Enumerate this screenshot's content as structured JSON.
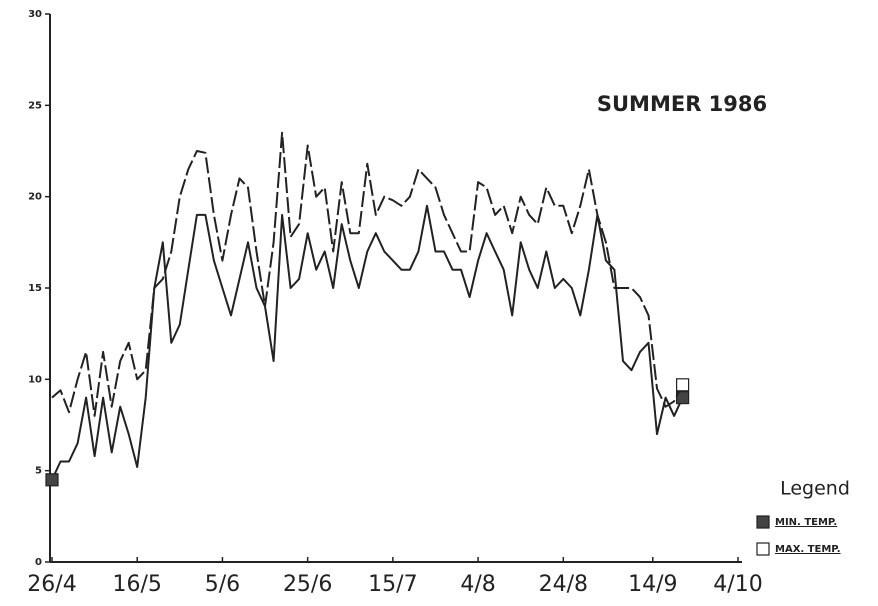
{
  "chart_data": {
    "type": "line",
    "title": "SUMMER 1986",
    "x": [
      0,
      2,
      4,
      6,
      8,
      10,
      12,
      14,
      16,
      18,
      20,
      22,
      24,
      26,
      28,
      30,
      32,
      34,
      36,
      38,
      40,
      42,
      44,
      46,
      48,
      50,
      52,
      54,
      56,
      58,
      60,
      62,
      64,
      66,
      68,
      70,
      72,
      74,
      76,
      78,
      80,
      82,
      84,
      86,
      88,
      90,
      92,
      94,
      96,
      98,
      100,
      102,
      104,
      106,
      108,
      110,
      112,
      114,
      116,
      118,
      120,
      122,
      124,
      126,
      128,
      130,
      132,
      134,
      136,
      138,
      140,
      142,
      144,
      146,
      148
    ],
    "series": [
      {
        "name": "MIN. TEMP.",
        "color": "#222222",
        "line_style": "solid",
        "marker_fill": "#444444",
        "values": [
          4.5,
          5.5,
          5.5,
          6.5,
          9,
          5.8,
          9,
          6,
          8.5,
          7,
          5.2,
          9,
          15,
          17.5,
          12,
          13,
          16,
          19,
          19,
          16.5,
          15,
          13.5,
          15.5,
          17.5,
          15,
          14,
          11,
          19,
          15,
          15.5,
          18,
          16,
          17,
          15,
          18.5,
          16.5,
          15,
          17,
          18,
          17,
          16.5,
          16,
          16,
          17,
          19.5,
          17,
          17,
          16,
          16,
          14.5,
          16.5,
          18,
          17,
          16,
          13.5,
          17.5,
          16,
          15,
          17,
          15,
          15.5,
          15,
          13.5,
          16,
          19,
          16.5,
          16,
          11,
          10.5,
          11.5,
          12,
          7,
          9,
          8,
          9
        ]
      },
      {
        "name": "MAX. TEMP.",
        "color": "#222222",
        "line_style": "dashed",
        "marker_fill": "#ffffff",
        "values": [
          9,
          9.4,
          8.2,
          10,
          11.5,
          8,
          11.5,
          8.5,
          11,
          12,
          10,
          10.5,
          15,
          15.5,
          17,
          20,
          21.5,
          22.5,
          22.4,
          19,
          16.5,
          19,
          21,
          20.5,
          17,
          14,
          17.5,
          23.5,
          17.8,
          18.5,
          22.8,
          20,
          20.5,
          17,
          20.8,
          18,
          18,
          21.8,
          19,
          20,
          19.8,
          19.5,
          20,
          21.5,
          21,
          20.5,
          19,
          18,
          17,
          17,
          20.8,
          20.5,
          19,
          19.5,
          18,
          20,
          19,
          18.5,
          20.5,
          19.5,
          19.5,
          18,
          19.5,
          21.5,
          19,
          17.5,
          15,
          15,
          15,
          14.5,
          13.5,
          9.5,
          8.5,
          8.8,
          9.7
        ]
      }
    ],
    "xlim": [
      0,
      161
    ],
    "xticks": [
      {
        "value": 0,
        "label": "26/4"
      },
      {
        "value": 20,
        "label": "16/5"
      },
      {
        "value": 40,
        "label": "5/6"
      },
      {
        "value": 60,
        "label": "25/6"
      },
      {
        "value": 80,
        "label": "15/7"
      },
      {
        "value": 100,
        "label": "4/8"
      },
      {
        "value": 120,
        "label": "24/8"
      },
      {
        "value": 141,
        "label": "14/9"
      },
      {
        "value": 161,
        "label": "4/10"
      }
    ],
    "ylim": [
      0,
      30
    ],
    "yticks": [
      0,
      5,
      10,
      15,
      20,
      25,
      30
    ],
    "legend_title": "Legend",
    "legend_position": "lower right"
  }
}
